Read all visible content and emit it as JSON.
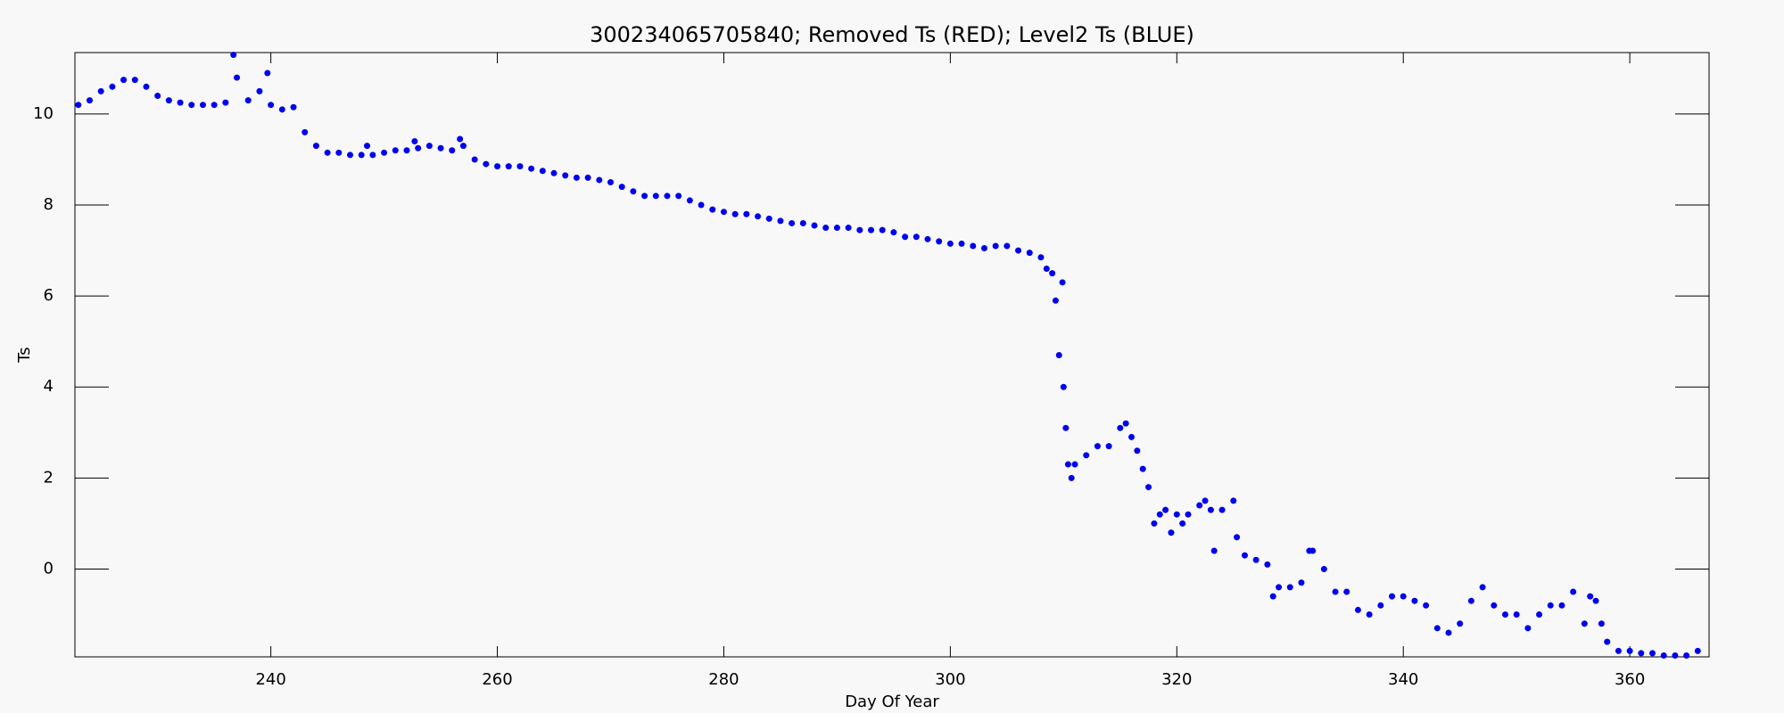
{
  "chart_data": {
    "type": "scatter",
    "title": "300234065705840; Removed Ts (RED); Level2 Ts (BLUE)",
    "x_label": "Day Of Year",
    "y_label": "Ts",
    "xlim": [
      222.7,
      367
    ],
    "ylim": [
      -1.93,
      11.35
    ],
    "xticks": [
      240,
      260,
      280,
      300,
      320,
      340,
      360
    ],
    "yticks": [
      0,
      2,
      4,
      6,
      8,
      10
    ],
    "series": [
      {
        "name": "Level2 Ts",
        "color": "#0000ee",
        "x": [
          223,
          224,
          225,
          226,
          227,
          228,
          229,
          230,
          231,
          232,
          233,
          234,
          235,
          236,
          236.7,
          237,
          238,
          239,
          239.7,
          240,
          241,
          242,
          243,
          244,
          245,
          246,
          247,
          248,
          248.5,
          249,
          250,
          251,
          252,
          252.7,
          253,
          254,
          255,
          256,
          256.7,
          257,
          258,
          259,
          260,
          261,
          262,
          263,
          264,
          265,
          266,
          267,
          268,
          269,
          270,
          271,
          272,
          273,
          274,
          275,
          276,
          277,
          278,
          279,
          280,
          281,
          282,
          283,
          284,
          285,
          286,
          287,
          288,
          289,
          290,
          291,
          292,
          293,
          294,
          295,
          296,
          297,
          298,
          299,
          300,
          301,
          302,
          303,
          304,
          305,
          306,
          307,
          308,
          308.5,
          309,
          309.3,
          309.6,
          309.9,
          310,
          310.2,
          310.4,
          310.7,
          311,
          312,
          313,
          314,
          315,
          315.5,
          316,
          316.5,
          317,
          317.5,
          318,
          318.5,
          319,
          319.5,
          320,
          320.5,
          321,
          322,
          322.5,
          323,
          323.3,
          324,
          325,
          325.3,
          326,
          327,
          328,
          328.5,
          329,
          330,
          331,
          331.7,
          332,
          333,
          334,
          335,
          336,
          337,
          338,
          339,
          340,
          341,
          342,
          343,
          344,
          345,
          346,
          347,
          348,
          349,
          350,
          351,
          352,
          353,
          354,
          355,
          356,
          356.5,
          357,
          357.5,
          358,
          359,
          360,
          361,
          362,
          363,
          364,
          365,
          366
        ],
        "values": [
          10.2,
          10.3,
          10.5,
          10.6,
          10.75,
          10.75,
          10.6,
          10.4,
          10.3,
          10.25,
          10.2,
          10.2,
          10.2,
          10.25,
          11.3,
          10.8,
          10.3,
          10.5,
          10.9,
          10.2,
          10.1,
          10.15,
          9.6,
          9.3,
          9.15,
          9.15,
          9.1,
          9.1,
          9.3,
          9.1,
          9.15,
          9.2,
          9.2,
          9.4,
          9.25,
          9.3,
          9.25,
          9.2,
          9.45,
          9.3,
          9.0,
          8.9,
          8.85,
          8.85,
          8.85,
          8.8,
          8.75,
          8.7,
          8.65,
          8.6,
          8.6,
          8.55,
          8.5,
          8.4,
          8.3,
          8.2,
          8.2,
          8.2,
          8.2,
          8.1,
          8.0,
          7.9,
          7.85,
          7.8,
          7.8,
          7.75,
          7.7,
          7.65,
          7.6,
          7.6,
          7.55,
          7.5,
          7.5,
          7.5,
          7.45,
          7.45,
          7.45,
          7.4,
          7.3,
          7.3,
          7.25,
          7.2,
          7.15,
          7.15,
          7.1,
          7.05,
          7.1,
          7.1,
          7.0,
          6.95,
          6.85,
          6.6,
          6.5,
          5.9,
          4.7,
          6.3,
          4.0,
          3.1,
          2.3,
          2.0,
          2.3,
          2.5,
          2.7,
          2.7,
          3.1,
          3.2,
          2.9,
          2.6,
          2.2,
          1.8,
          1.0,
          1.2,
          1.3,
          0.8,
          1.2,
          1.0,
          1.2,
          1.4,
          1.5,
          1.3,
          0.4,
          1.3,
          1.5,
          0.7,
          0.3,
          0.2,
          0.1,
          -0.6,
          -0.4,
          -0.4,
          -0.3,
          0.4,
          0.4,
          0,
          -0.5,
          -0.5,
          -0.9,
          -1.0,
          -0.8,
          -0.6,
          -0.6,
          -0.7,
          -0.8,
          -1.3,
          -1.4,
          -1.2,
          -0.7,
          -0.4,
          -0.8,
          -1.0,
          -1.0,
          -1.3,
          -1.0,
          -0.8,
          -0.8,
          -0.5,
          -1.2,
          -0.6,
          -0.7,
          -1.2,
          -1.6,
          -1.8,
          -1.8,
          -1.85,
          -1.85,
          -1.9,
          -1.9,
          -1.9,
          -1.8
        ]
      }
    ]
  }
}
